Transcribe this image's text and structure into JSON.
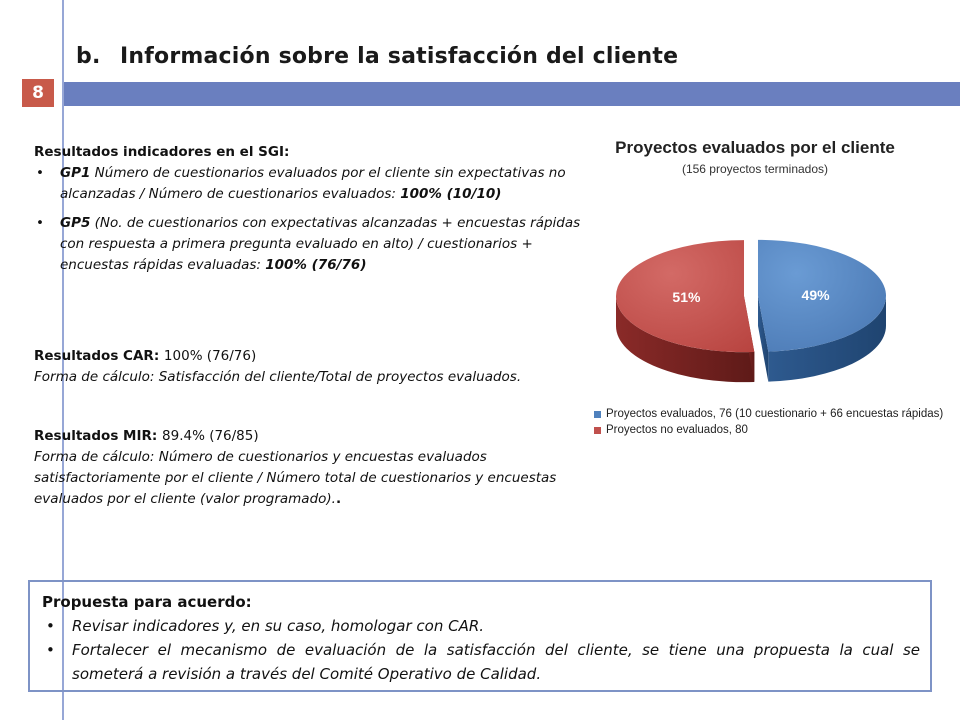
{
  "header": {
    "title_number": "b.",
    "title_text": "Información sobre la satisfacción del cliente",
    "page_number": "8"
  },
  "sgi": {
    "heading": "Resultados indicadores en el SGI:",
    "items": [
      {
        "code": "GP1",
        "text": " Número de cuestionarios evaluados por el cliente sin expectativas no alcanzadas / Número de cuestionarios evaluados: ",
        "result": "100% (10/10)"
      },
      {
        "code": "GP5",
        "text": " (No. de cuestionarios con expectativas alcanzadas + encuestas rápidas con respuesta a primera pregunta evaluado en alto) / cuestionarios + encuestas rápidas evaluadas: ",
        "result": "100% (76/76)"
      }
    ]
  },
  "car": {
    "label": "Resultados CAR: ",
    "value": "100% (76/76)",
    "formula": "Forma de cálculo: Satisfacción del cliente/Total de proyectos evaluados."
  },
  "mir": {
    "label": "Resultados MIR: ",
    "value": "89.4% (76/85)",
    "formula": "Forma de cálculo: Número de cuestionarios y encuestas evaluados satisfactoriamente por el cliente / Número total de cuestionarios y encuestas evaluados por el cliente (valor programado).",
    "period": "."
  },
  "chart_data": {
    "type": "pie",
    "title": "Proyectos evaluados por el cliente",
    "subtitle": "(156 proyectos terminados)",
    "legend_position": "bottom",
    "series": [
      {
        "name": "Proyectos evaluados, 76 (10 cuestionario + 66 encuestas rápidas)",
        "value": 76,
        "percent_label": "49%",
        "color": "#4f81bd"
      },
      {
        "name": "Proyectos no evaluados, 80",
        "value": 80,
        "percent_label": "51%",
        "color": "#c0504d"
      }
    ]
  },
  "proposal": {
    "heading": "Propuesta para acuerdo:",
    "items": [
      "Revisar indicadores y, en su caso, homologar con CAR.",
      "Fortalecer el mecanismo de evaluación de la satisfacción del cliente, se tiene una propuesta la cual se someterá a revisión a través del Comité Operativo de Calidad."
    ]
  },
  "colors": {
    "accent_bar": "#6a7fbf",
    "page_box": "#c85a4a",
    "proposal_border": "#7e93c6"
  }
}
